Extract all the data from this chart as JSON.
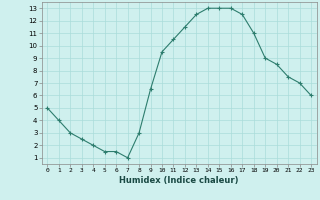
{
  "x": [
    0,
    1,
    2,
    3,
    4,
    5,
    6,
    7,
    8,
    9,
    10,
    11,
    12,
    13,
    14,
    15,
    16,
    17,
    18,
    19,
    20,
    21,
    22,
    23
  ],
  "y": [
    5,
    4,
    3,
    2.5,
    2,
    1.5,
    1.5,
    1,
    3,
    6.5,
    9.5,
    10.5,
    11.5,
    12.5,
    13,
    13,
    13,
    12.5,
    11,
    9,
    8.5,
    7.5,
    7,
    6
  ],
  "line_color": "#2d7d6e",
  "marker": "+",
  "marker_color": "#2d7d6e",
  "bg_color": "#cff0ee",
  "grid_color": "#aaddda",
  "xlabel": "Humidex (Indice chaleur)",
  "xlim": [
    -0.5,
    23.5
  ],
  "ylim": [
    0.5,
    13.5
  ],
  "xticks": [
    0,
    1,
    2,
    3,
    4,
    5,
    6,
    7,
    8,
    9,
    10,
    11,
    12,
    13,
    14,
    15,
    16,
    17,
    18,
    19,
    20,
    21,
    22,
    23
  ],
  "yticks": [
    1,
    2,
    3,
    4,
    5,
    6,
    7,
    8,
    9,
    10,
    11,
    12,
    13
  ]
}
